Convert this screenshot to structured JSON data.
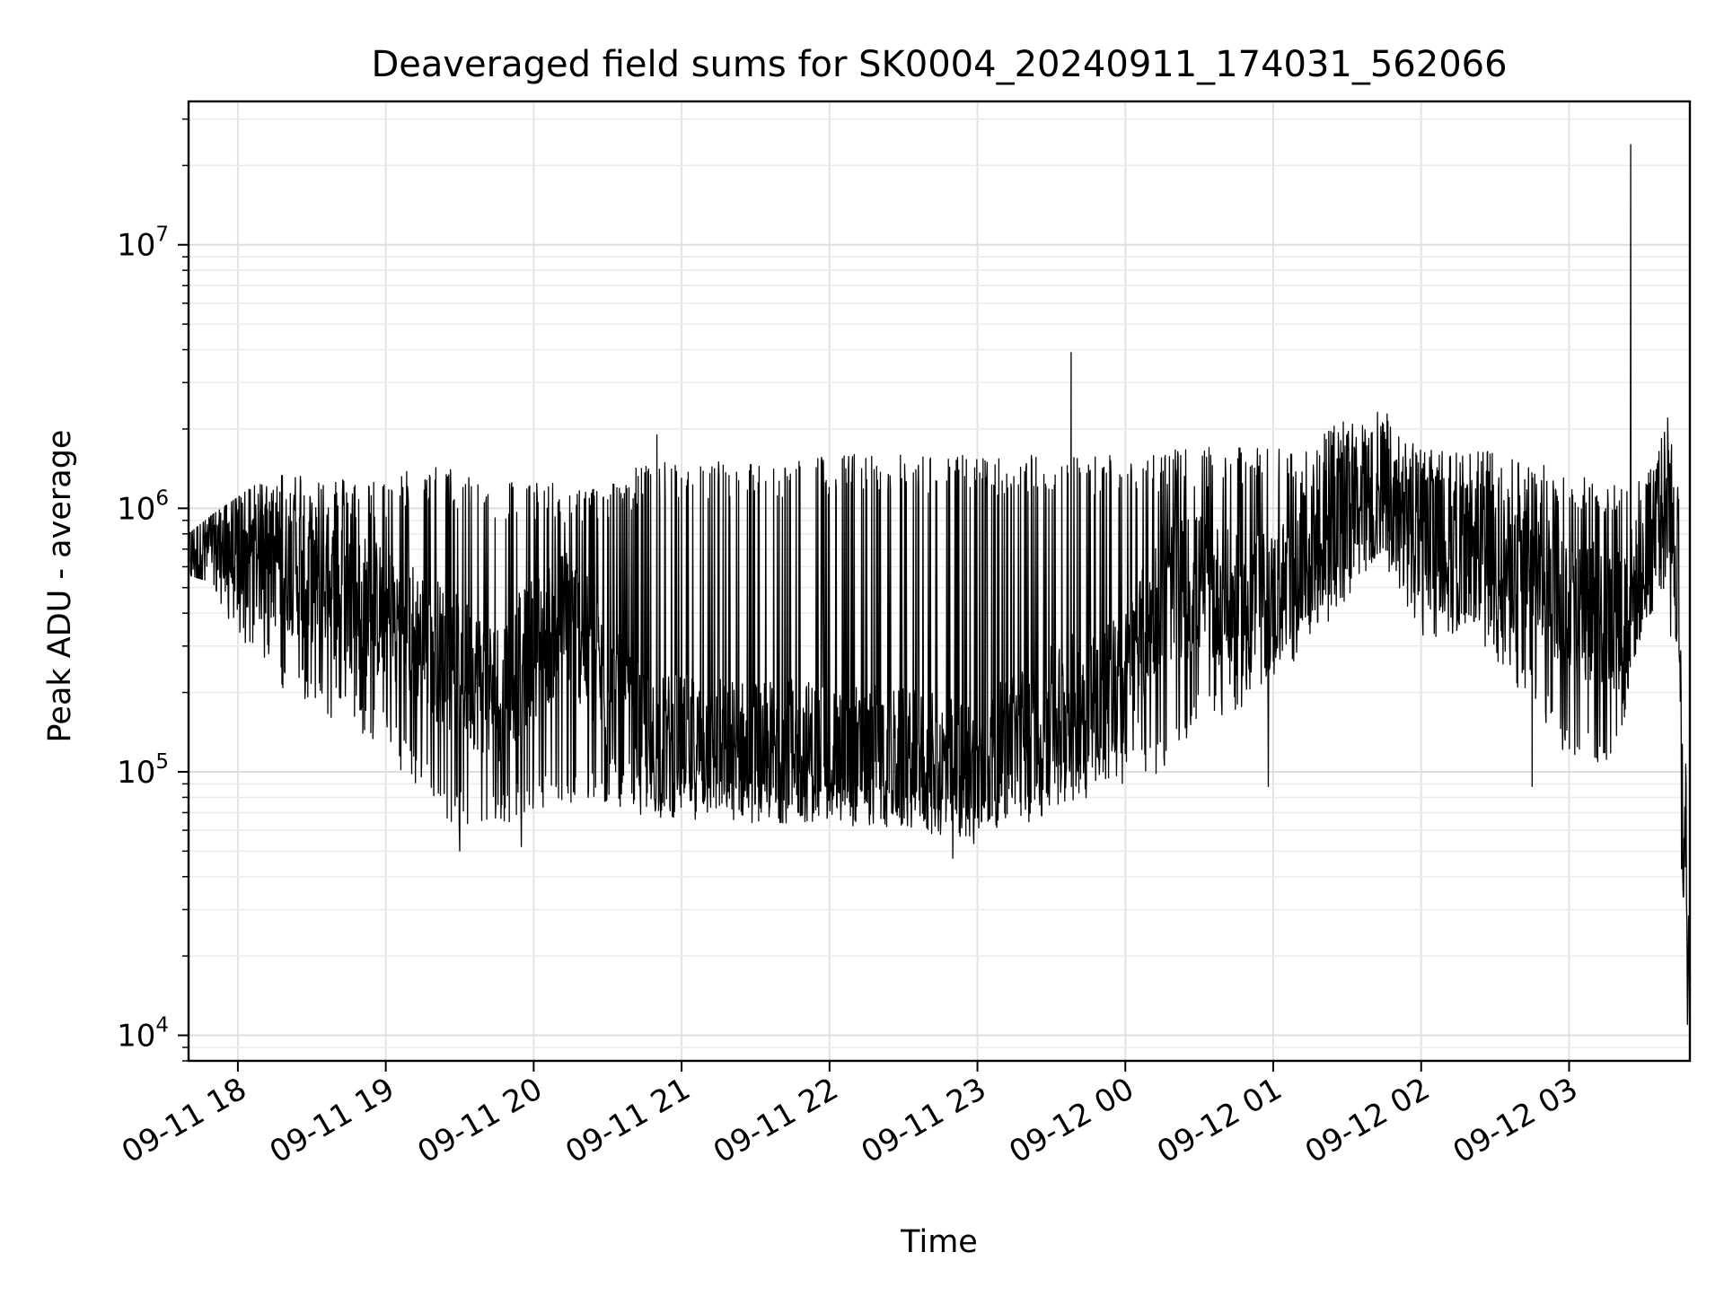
{
  "chart_data": {
    "type": "line",
    "title": "Deaveraged field sums for SK0004_20240911_174031_562066",
    "xlabel": "Time",
    "ylabel": "Peak ADU - average",
    "y_scale": "log",
    "x_range": [
      "2024-09-11 17:40",
      "2024-09-12 03:49"
    ],
    "ylim": [
      8000,
      35000000
    ],
    "grid": "on (major and minor)",
    "line_color": "#000000",
    "x_tick_labels": [
      "09-11 18",
      "09-11 19",
      "09-11 20",
      "09-11 21",
      "09-11 22",
      "09-11 23",
      "09-12 00",
      "09-12 01",
      "09-12 02",
      "09-12 03"
    ],
    "x_tick_values": [
      "2024-09-11 18:00",
      "2024-09-11 19:00",
      "2024-09-11 20:00",
      "2024-09-11 21:00",
      "2024-09-11 22:00",
      "2024-09-11 23:00",
      "2024-09-12 00:00",
      "2024-09-12 01:00",
      "2024-09-12 02:00",
      "2024-09-12 03:00"
    ],
    "y_tick_values": [
      10000,
      100000,
      1000000,
      10000000
    ],
    "y_tick_labels": [
      {
        "base": "10",
        "exp": "4"
      },
      {
        "base": "10",
        "exp": "5"
      },
      {
        "base": "10",
        "exp": "6"
      },
      {
        "base": "10",
        "exp": "7"
      }
    ],
    "series": [
      {
        "envelope": {
          "x": [
            "2024-09-11 17:40",
            "2024-09-11 17:50",
            "2024-09-11 18:00",
            "2024-09-11 18:15",
            "2024-09-11 18:30",
            "2024-09-11 18:45",
            "2024-09-11 19:00",
            "2024-09-11 19:15",
            "2024-09-11 19:30",
            "2024-09-11 19:45",
            "2024-09-11 20:00",
            "2024-09-11 20:15",
            "2024-09-11 20:30",
            "2024-09-11 20:45",
            "2024-09-11 21:00",
            "2024-09-11 21:30",
            "2024-09-11 22:00",
            "2024-09-11 22:30",
            "2024-09-11 22:45",
            "2024-09-11 23:00",
            "2024-09-11 23:15",
            "2024-09-11 23:30",
            "2024-09-11 23:45",
            "2024-09-12 00:00",
            "2024-09-12 00:15",
            "2024-09-12 00:30",
            "2024-09-12 00:45",
            "2024-09-12 01:00",
            "2024-09-12 01:15",
            "2024-09-12 01:30",
            "2024-09-12 01:45",
            "2024-09-12 02:00",
            "2024-09-12 02:15",
            "2024-09-12 02:30",
            "2024-09-12 02:45",
            "2024-09-12 03:00",
            "2024-09-12 03:10",
            "2024-09-12 03:20",
            "2024-09-12 03:30",
            "2024-09-12 03:40",
            "2024-09-12 03:45",
            "2024-09-12 03:49"
          ],
          "low": [
            620000,
            580000,
            330000,
            220000,
            170000,
            150000,
            120000,
            80000,
            60000,
            60000,
            70000,
            70000,
            75000,
            65000,
            65000,
            65000,
            65000,
            62000,
            60000,
            55000,
            60000,
            70000,
            80000,
            90000,
            100000,
            150000,
            170000,
            220000,
            300000,
            450000,
            600000,
            330000,
            300000,
            250000,
            180000,
            110000,
            100000,
            110000,
            420000,
            500000,
            40000,
            12000
          ],
          "typical": [
            700000,
            680000,
            700000,
            650000,
            580000,
            450000,
            400000,
            320000,
            250000,
            200000,
            300000,
            400000,
            200000,
            130000,
            125000,
            120000,
            120000,
            110000,
            105000,
            100000,
            130000,
            160000,
            200000,
            220000,
            480000,
            520000,
            420000,
            450000,
            650000,
            950000,
            1200000,
            800000,
            700000,
            650000,
            600000,
            450000,
            400000,
            380000,
            550000,
            1200000,
            300000,
            18000
          ],
          "high": [
            800000,
            950000,
            1100000,
            1400000,
            1400000,
            1300000,
            1300000,
            1500000,
            1400000,
            1300000,
            1300000,
            1200000,
            1250000,
            1500000,
            1500000,
            1500000,
            1600000,
            1600000,
            1600000,
            1600000,
            1600000,
            1600000,
            1600000,
            1650000,
            1650000,
            1700000,
            1700000,
            1700000,
            1800000,
            2200000,
            2400000,
            1700000,
            1650000,
            1650000,
            1500000,
            1400000,
            1300000,
            1300000,
            1300000,
            2100000,
            1200000,
            20000
          ]
        },
        "spikes": [
          {
            "x": "2024-09-11 20:50",
            "y": 1900000
          },
          {
            "x": "2024-09-11 21:15",
            "y": 1500000
          },
          {
            "x": "2024-09-11 22:10",
            "y": 1600000
          },
          {
            "x": "2024-09-11 23:38",
            "y": 3900000
          },
          {
            "x": "2024-09-12 03:25",
            "y": 24000000
          },
          {
            "x": "2024-09-12 03:40",
            "y": 2200000
          }
        ],
        "dips": [
          {
            "x": "2024-09-11 19:30",
            "y": 50000
          },
          {
            "x": "2024-09-11 19:55",
            "y": 52000
          },
          {
            "x": "2024-09-11 22:50",
            "y": 47000
          },
          {
            "x": "2024-09-12 00:58",
            "y": 88000
          },
          {
            "x": "2024-09-12 02:45",
            "y": 88000
          },
          {
            "x": "2024-09-12 03:48",
            "y": 11000
          }
        ]
      }
    ]
  }
}
